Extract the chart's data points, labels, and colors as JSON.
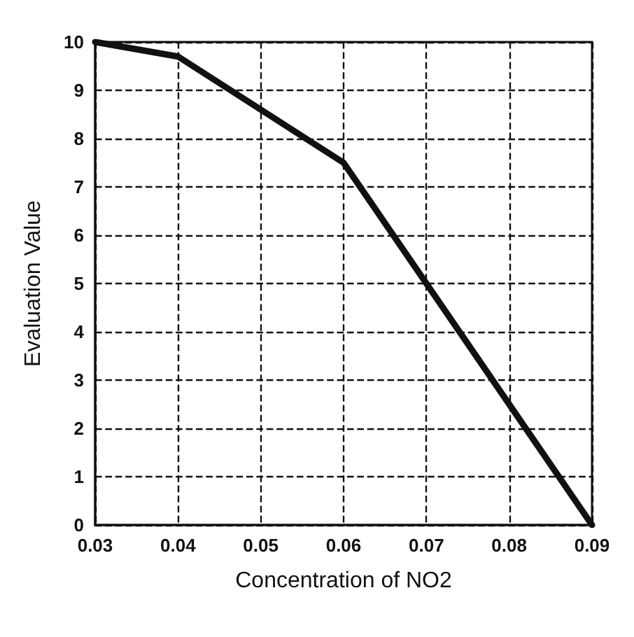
{
  "chart_data": {
    "type": "line",
    "xlabel": "Concentration of NO2",
    "ylabel": "Evaluation Value",
    "x": [
      0.03,
      0.04,
      0.06,
      0.09
    ],
    "series": [
      {
        "color": "#111111",
        "values": [
          10,
          9.7,
          7.5,
          0
        ]
      }
    ],
    "xlim": [
      0.03,
      0.09
    ],
    "xticks": [
      0.03,
      0.04,
      0.05,
      0.06,
      0.07,
      0.08,
      0.09
    ],
    "ylim": [
      0,
      10
    ],
    "yticks": [
      0,
      1,
      2,
      3,
      4,
      5,
      6,
      7,
      8,
      9,
      10
    ],
    "grid": true,
    "marker": "none",
    "line_style": "solid"
  }
}
